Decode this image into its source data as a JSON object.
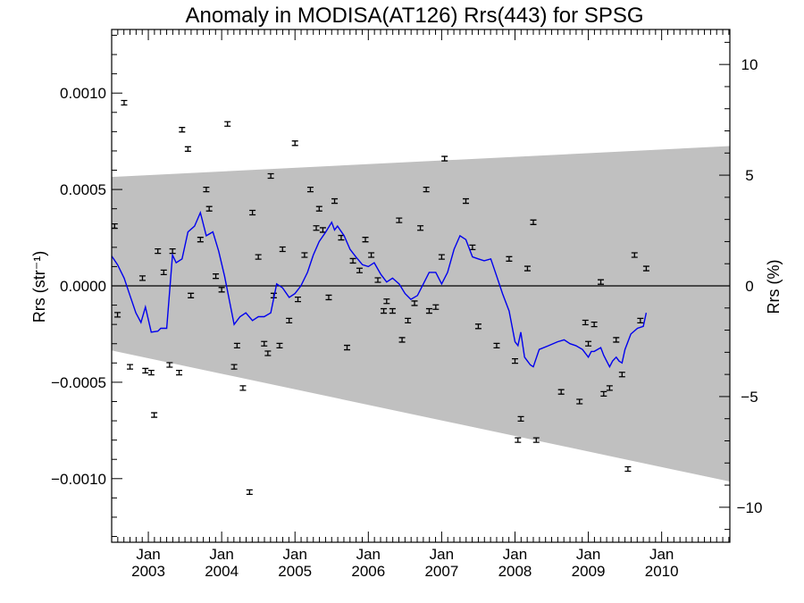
{
  "chart_data": {
    "type": "scatter",
    "title": "Anomaly in MODISA(AT126) Rrs(443) for SPSG",
    "ylabel_left": "Rrs (str⁻¹)",
    "ylabel_right": "Rrs (%)",
    "xlim": [
      2002.5,
      2010.93
    ],
    "ylim_left": [
      -0.00133,
      0.00133
    ],
    "ylim_right": [
      -11.58,
      11.58
    ],
    "left_ticks": [
      {
        "v": 0.001,
        "label": "0.0010"
      },
      {
        "v": 0.0005,
        "label": "0.0005"
      },
      {
        "v": 0.0,
        "label": "0.0000"
      },
      {
        "v": -0.0005,
        "label": "−0.0005"
      },
      {
        "v": -0.001,
        "label": "−0.0010"
      }
    ],
    "right_ticks": [
      {
        "v": 10,
        "label": "10"
      },
      {
        "v": 5,
        "label": "5"
      },
      {
        "v": 0,
        "label": "0"
      },
      {
        "v": -5,
        "label": "−5"
      },
      {
        "v": -10,
        "label": "−10"
      }
    ],
    "x_ticks": [
      {
        "v": 2003.0,
        "month": "Jan",
        "year": "2003"
      },
      {
        "v": 2004.0,
        "month": "Jan",
        "year": "2004"
      },
      {
        "v": 2005.0,
        "month": "Jan",
        "year": "2005"
      },
      {
        "v": 2006.0,
        "month": "Jan",
        "year": "2006"
      },
      {
        "v": 2007.0,
        "month": "Jan",
        "year": "2007"
      },
      {
        "v": 2008.0,
        "month": "Jan",
        "year": "2008"
      },
      {
        "v": 2009.0,
        "month": "Jan",
        "year": "2009"
      },
      {
        "v": 2010.0,
        "month": "Jan",
        "year": "2010"
      }
    ],
    "zero_line": 0,
    "band": {
      "upper": [
        [
          2002.5,
          0.000565
        ],
        [
          2010.93,
          0.000725
        ]
      ],
      "lower": [
        [
          2002.5,
          -0.000335
        ],
        [
          2010.93,
          -0.001015
        ]
      ]
    },
    "points": [
      [
        2002.54,
        0.00031
      ],
      [
        2002.58,
        -0.00015
      ],
      [
        2002.67,
        0.00095
      ],
      [
        2002.75,
        -0.00042
      ],
      [
        2002.92,
        4e-05
      ],
      [
        2002.96,
        -0.00044
      ],
      [
        2003.04,
        -0.00045
      ],
      [
        2003.08,
        -0.00067
      ],
      [
        2003.13,
        0.00018
      ],
      [
        2003.21,
        7e-05
      ],
      [
        2003.29,
        -0.00041
      ],
      [
        2003.33,
        0.00018
      ],
      [
        2003.42,
        -0.00045
      ],
      [
        2003.46,
        0.00081
      ],
      [
        2003.54,
        0.00071
      ],
      [
        2003.58,
        -5e-05
      ],
      [
        2003.71,
        0.00024
      ],
      [
        2003.79,
        0.0005
      ],
      [
        2003.83,
        0.0004
      ],
      [
        2003.92,
        5e-05
      ],
      [
        2004.0,
        -2e-05
      ],
      [
        2004.08,
        0.00084
      ],
      [
        2004.17,
        -0.00042
      ],
      [
        2004.21,
        -0.00031
      ],
      [
        2004.29,
        -0.00053
      ],
      [
        2004.38,
        -0.00107
      ],
      [
        2004.42,
        0.00038
      ],
      [
        2004.5,
        0.00015
      ],
      [
        2004.58,
        -0.0003
      ],
      [
        2004.63,
        -0.00035
      ],
      [
        2004.67,
        0.00057
      ],
      [
        2004.71,
        -5e-05
      ],
      [
        2004.79,
        -0.00031
      ],
      [
        2004.83,
        0.00019
      ],
      [
        2004.92,
        -0.00018
      ],
      [
        2005.0,
        0.00074
      ],
      [
        2005.04,
        -7e-05
      ],
      [
        2005.13,
        0.00016
      ],
      [
        2005.21,
        0.0005
      ],
      [
        2005.29,
        0.0003
      ],
      [
        2005.33,
        0.0004
      ],
      [
        2005.38,
        0.00029
      ],
      [
        2005.46,
        -6e-05
      ],
      [
        2005.54,
        0.00044
      ],
      [
        2005.63,
        0.00025
      ],
      [
        2005.71,
        -0.00032
      ],
      [
        2005.79,
        0.00013
      ],
      [
        2005.88,
        8e-05
      ],
      [
        2005.96,
        0.00024
      ],
      [
        2006.04,
        0.00016
      ],
      [
        2006.13,
        3e-05
      ],
      [
        2006.21,
        -0.00013
      ],
      [
        2006.25,
        -8e-05
      ],
      [
        2006.33,
        -0.00013
      ],
      [
        2006.42,
        0.00034
      ],
      [
        2006.46,
        -0.00028
      ],
      [
        2006.54,
        -0.00018
      ],
      [
        2006.63,
        -9e-05
      ],
      [
        2006.71,
        0.0003
      ],
      [
        2006.79,
        0.0005
      ],
      [
        2006.83,
        -0.00013
      ],
      [
        2006.92,
        -0.00011
      ],
      [
        2007.0,
        0.00015
      ],
      [
        2007.04,
        0.00066
      ],
      [
        2007.33,
        0.00044
      ],
      [
        2007.42,
        0.0002
      ],
      [
        2007.5,
        -0.00021
      ],
      [
        2007.75,
        -0.00031
      ],
      [
        2007.92,
        0.00014
      ],
      [
        2008.0,
        -0.00039
      ],
      [
        2008.04,
        -0.0008
      ],
      [
        2008.08,
        -0.00069
      ],
      [
        2008.17,
        9e-05
      ],
      [
        2008.25,
        0.00033
      ],
      [
        2008.29,
        -0.0008
      ],
      [
        2008.63,
        -0.00055
      ],
      [
        2008.88,
        -0.0006
      ],
      [
        2008.96,
        -0.00019
      ],
      [
        2009.0,
        -0.0003
      ],
      [
        2009.08,
        -0.0002
      ],
      [
        2009.17,
        2e-05
      ],
      [
        2009.21,
        -0.00056
      ],
      [
        2009.29,
        -0.00053
      ],
      [
        2009.38,
        -0.00028
      ],
      [
        2009.46,
        -0.00046
      ],
      [
        2009.54,
        -0.00095
      ],
      [
        2009.63,
        0.00016
      ],
      [
        2009.71,
        -0.00018
      ],
      [
        2009.79,
        9e-05
      ]
    ],
    "line": [
      [
        2002.5,
        0.000155
      ],
      [
        2002.58,
        0.00011
      ],
      [
        2002.67,
        4e-05
      ],
      [
        2002.75,
        -5e-05
      ],
      [
        2002.83,
        -0.00014
      ],
      [
        2002.9,
        -0.00019
      ],
      [
        2002.96,
        -0.00011
      ],
      [
        2003.04,
        -0.00024
      ],
      [
        2003.13,
        -0.000235
      ],
      [
        2003.17,
        -0.00022
      ],
      [
        2003.25,
        -0.00022
      ],
      [
        2003.33,
        0.00016
      ],
      [
        2003.38,
        0.00012
      ],
      [
        2003.46,
        0.00014
      ],
      [
        2003.54,
        0.00028
      ],
      [
        2003.63,
        0.00031
      ],
      [
        2003.71,
        0.00038
      ],
      [
        2003.79,
        0.00026
      ],
      [
        2003.88,
        0.00028
      ],
      [
        2003.96,
        0.00018
      ],
      [
        2004.04,
        5e-05
      ],
      [
        2004.17,
        -0.0002
      ],
      [
        2004.25,
        -0.00016
      ],
      [
        2004.33,
        -0.00014
      ],
      [
        2004.42,
        -0.00018
      ],
      [
        2004.5,
        -0.00016
      ],
      [
        2004.58,
        -0.00016
      ],
      [
        2004.67,
        -0.00014
      ],
      [
        2004.75,
        1e-05
      ],
      [
        2004.83,
        -1e-05
      ],
      [
        2004.92,
        -6e-05
      ],
      [
        2005.0,
        -4e-05
      ],
      [
        2005.08,
        0.0
      ],
      [
        2005.17,
        7e-05
      ],
      [
        2005.25,
        0.00016
      ],
      [
        2005.33,
        0.00023
      ],
      [
        2005.42,
        0.00028
      ],
      [
        2005.5,
        0.00033
      ],
      [
        2005.54,
        0.00029
      ],
      [
        2005.58,
        0.00031
      ],
      [
        2005.67,
        0.00026
      ],
      [
        2005.75,
        0.00019
      ],
      [
        2005.83,
        0.00015
      ],
      [
        2005.92,
        0.00011
      ],
      [
        2006.0,
        0.0001
      ],
      [
        2006.08,
        0.00012
      ],
      [
        2006.17,
        6e-05
      ],
      [
        2006.25,
        2e-05
      ],
      [
        2006.33,
        4e-05
      ],
      [
        2006.42,
        1e-05
      ],
      [
        2006.5,
        -4e-05
      ],
      [
        2006.58,
        -7e-05
      ],
      [
        2006.67,
        -5e-05
      ],
      [
        2006.75,
        1e-05
      ],
      [
        2006.83,
        7e-05
      ],
      [
        2006.92,
        7e-05
      ],
      [
        2007.0,
        1e-05
      ],
      [
        2007.08,
        7e-05
      ],
      [
        2007.17,
        0.00019
      ],
      [
        2007.25,
        0.00026
      ],
      [
        2007.33,
        0.00024
      ],
      [
        2007.42,
        0.00015
      ],
      [
        2007.5,
        0.00014
      ],
      [
        2007.58,
        0.00013
      ],
      [
        2007.67,
        0.00014
      ],
      [
        2007.75,
        5e-05
      ],
      [
        2007.83,
        -4e-05
      ],
      [
        2007.92,
        -0.00013
      ],
      [
        2008.0,
        -0.00029
      ],
      [
        2008.04,
        -0.00031
      ],
      [
        2008.08,
        -0.00024
      ],
      [
        2008.13,
        -0.00037
      ],
      [
        2008.21,
        -0.00041
      ],
      [
        2008.25,
        -0.00042
      ],
      [
        2008.33,
        -0.00033
      ],
      [
        2008.46,
        -0.00031
      ],
      [
        2008.58,
        -0.00029
      ],
      [
        2008.67,
        -0.00028
      ],
      [
        2008.75,
        -0.0003
      ],
      [
        2008.83,
        -0.00031
      ],
      [
        2008.92,
        -0.00033
      ],
      [
        2009.0,
        -0.00037
      ],
      [
        2009.04,
        -0.00034
      ],
      [
        2009.08,
        -0.00034
      ],
      [
        2009.17,
        -0.00032
      ],
      [
        2009.21,
        -0.00036
      ],
      [
        2009.25,
        -0.00039
      ],
      [
        2009.29,
        -0.00042
      ],
      [
        2009.33,
        -0.00039
      ],
      [
        2009.38,
        -0.00037
      ],
      [
        2009.42,
        -0.00039
      ],
      [
        2009.46,
        -0.0004
      ],
      [
        2009.5,
        -0.00033
      ],
      [
        2009.58,
        -0.00025
      ],
      [
        2009.67,
        -0.00022
      ],
      [
        2009.75,
        -0.00021
      ],
      [
        2009.79,
        -0.00014
      ]
    ],
    "grid": false,
    "colors": {
      "band": "#c0c0c0",
      "line": "#0000ee",
      "points": "#000000",
      "axes": "#000000"
    }
  }
}
